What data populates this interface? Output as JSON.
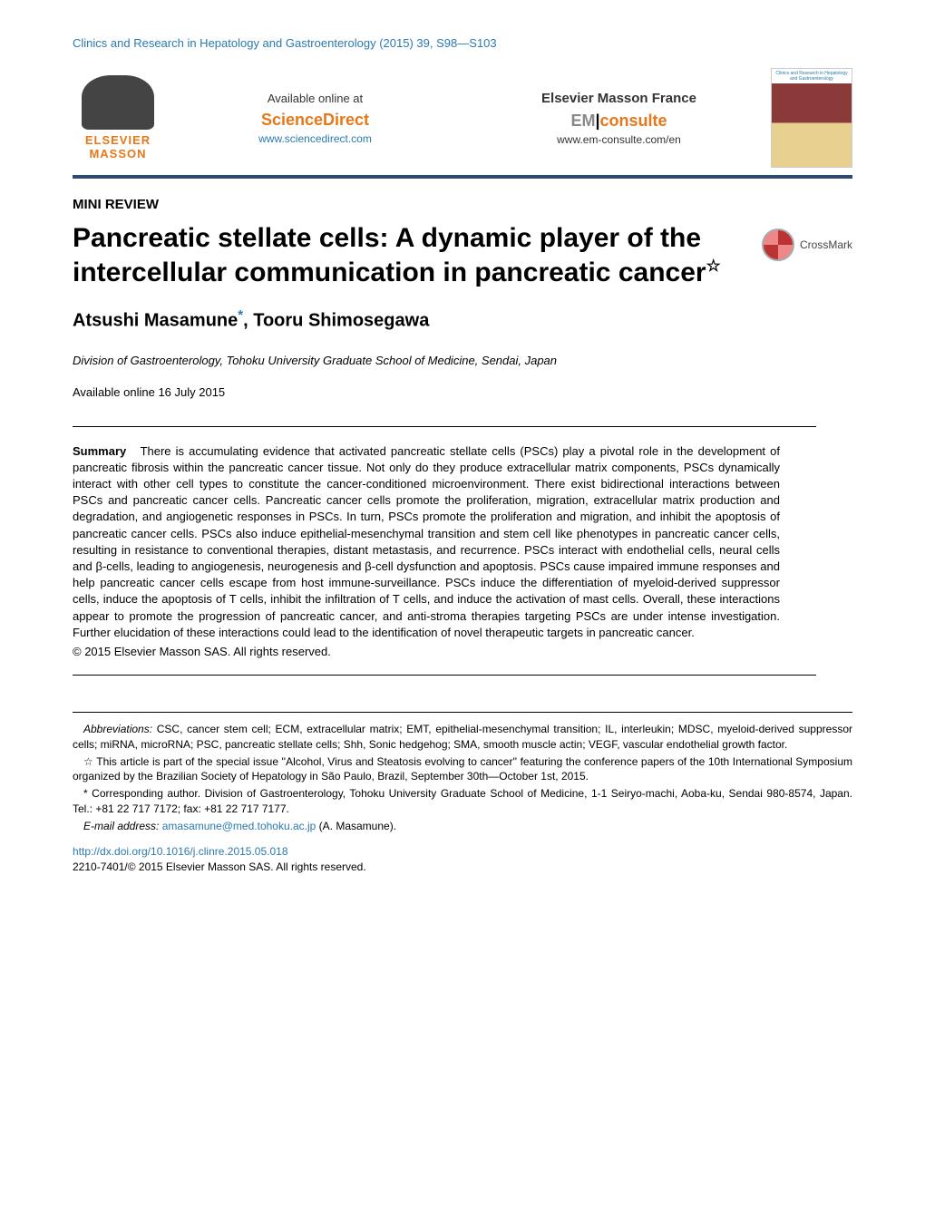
{
  "journal_ref": "Clinics and Research in Hepatology and Gastroenterology (2015) 39, S98—S103",
  "banner": {
    "elsevier": "ELSEVIER",
    "masson": "MASSON",
    "available_online": "Available online at",
    "sciencedirect": "ScienceDirect",
    "sd_url": "www.sciencedirect.com",
    "emf": "Elsevier Masson France",
    "em_prefix": "EM",
    "em_suffix": "consulte",
    "em_url": "www.em-consulte.com/en",
    "thumb_title": "Clinics and Research in Hepatology and Gastroenterology"
  },
  "article_type": "MINI REVIEW",
  "title": "Pancreatic stellate cells: A dynamic player of the intercellular communication in pancreatic cancer",
  "title_star": "☆",
  "crossmark": "CrossMark",
  "authors_line": "Atsushi Masamune",
  "author_mark": "*",
  "author2": ", Tooru Shimosegawa",
  "affiliation": "Division of Gastroenterology, Tohoku University Graduate School of Medicine, Sendai, Japan",
  "avail_date": "Available online 16 July 2015",
  "summary_label": "Summary",
  "abstract": "There is accumulating evidence that activated pancreatic stellate cells (PSCs) play a pivotal role in the development of pancreatic fibrosis within the pancreatic cancer tissue. Not only do they produce extracellular matrix components, PSCs dynamically interact with other cell types to constitute the cancer-conditioned microenvironment. There exist bidirectional interactions between PSCs and pancreatic cancer cells. Pancreatic cancer cells promote the proliferation, migration, extracellular matrix production and degradation, and angiogenetic responses in PSCs. In turn, PSCs promote the proliferation and migration, and inhibit the apoptosis of pancreatic cancer cells. PSCs also induce epithelial-mesenchymal transition and stem cell like phenotypes in pancreatic cancer cells, resulting in resistance to conventional therapies, distant metastasis, and recurrence. PSCs interact with endothelial cells, neural cells and β-cells, leading to angiogenesis, neurogenesis and β-cell dysfunction and apoptosis. PSCs cause impaired immune responses and help pancreatic cancer cells escape from host immune-surveillance. PSCs induce the differentiation of myeloid-derived suppressor cells, induce the apoptosis of T cells, inhibit the infiltration of T cells, and induce the activation of mast cells. Overall, these interactions appear to promote the progression of pancreatic cancer, and anti-stroma therapies targeting PSCs are under intense investigation. Further elucidation of these interactions could lead to the identification of novel therapeutic targets in pancreatic cancer.",
  "copyright": "© 2015 Elsevier Masson SAS. All rights reserved.",
  "footnotes": {
    "abbrev_label": "Abbreviations:",
    "abbrev": " CSC, cancer stem cell; ECM, extracellular matrix; EMT, epithelial-mesenchymal transition; IL, interleukin; MDSC, myeloid-derived suppressor cells; miRNA, microRNA; PSC, pancreatic stellate cells; Shh, Sonic hedgehog; SMA, smooth muscle actin; VEGF, vascular endothelial growth factor.",
    "star_note": "☆ This article is part of the special issue ''Alcohol, Virus and Steatosis evolving to cancer'' featuring the conference papers of the 10th International Symposium organized by the Brazilian Society of Hepatology in São Paulo, Brazil, September 30th—October 1st, 2015.",
    "corr_note": "* Corresponding author. Division of Gastroenterology, Tohoku University Graduate School of Medicine, 1-1 Seiryo-machi, Aoba-ku, Sendai 980-8574, Japan. Tel.: +81 22 717 7172; fax: +81 22 717 7177.",
    "email_label": "E-mail address:",
    "email": "amasamune@med.tohoku.ac.jp",
    "email_suffix": " (A. Masamune)."
  },
  "doi": "http://dx.doi.org/10.1016/j.clinre.2015.05.018",
  "issn_line": "2210-7401/© 2015 Elsevier Masson SAS. All rights reserved.",
  "colors": {
    "link": "#2a7ab0",
    "accent": "#e67817",
    "rule": "#2a4a7a"
  }
}
